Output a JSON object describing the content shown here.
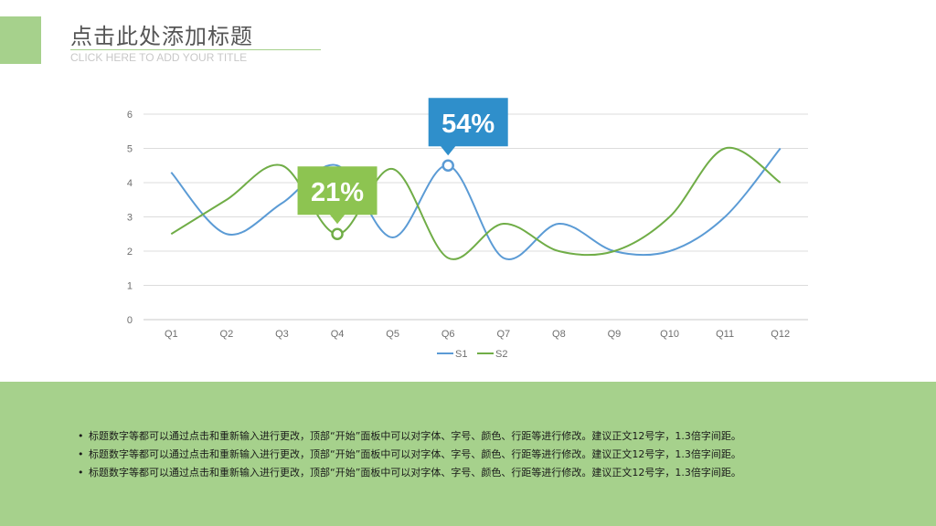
{
  "header": {
    "title": "点击此处添加标题",
    "subtitle": "CLICK HERE TO ADD YOUR TITLE",
    "accent_color": "#a6d18c"
  },
  "chart_data": {
    "type": "line",
    "smooth": true,
    "categories": [
      "Q1",
      "Q2",
      "Q3",
      "Q4",
      "Q5",
      "Q6",
      "Q7",
      "Q8",
      "Q9",
      "Q10",
      "Q11",
      "Q12"
    ],
    "ylim": [
      0,
      6
    ],
    "yticks": [
      "0",
      "1",
      "2",
      "3",
      "4",
      "5",
      "6"
    ],
    "grid": true,
    "legend": "bottom-center",
    "series": [
      {
        "name": "S1",
        "color": "#5b9bd5",
        "values": [
          4.3,
          2.5,
          3.4,
          4.5,
          2.4,
          4.5,
          1.8,
          2.8,
          2.0,
          2.0,
          3.0,
          5.0
        ]
      },
      {
        "name": "S2",
        "color": "#70ad47",
        "values": [
          2.5,
          3.5,
          4.5,
          2.5,
          4.4,
          1.8,
          2.8,
          2.0,
          2.0,
          3.0,
          5.0,
          4.0
        ]
      }
    ],
    "callouts": [
      {
        "label": "21%",
        "series": 1,
        "index": 3,
        "color": "#8dc451"
      },
      {
        "label": "54%",
        "series": 0,
        "index": 5,
        "color": "#2f8fcb"
      }
    ]
  },
  "footer": {
    "bullet_char": "•",
    "bullets": [
      "标题数字等都可以通过点击和重新输入进行更改，顶部“开始”面板中可以对字体、字号、颜色、行距等进行修改。建议正文12号字，1.3倍字间距。",
      "标题数字等都可以通过点击和重新输入进行更改，顶部“开始”面板中可以对字体、字号、颜色、行距等进行修改。建议正文12号字，1.3倍字间距。",
      "标题数字等都可以通过点击和重新输入进行更改，顶部“开始”面板中可以对字体、字号、颜色、行距等进行修改。建议正文12号字，1.3倍字间距。"
    ]
  }
}
